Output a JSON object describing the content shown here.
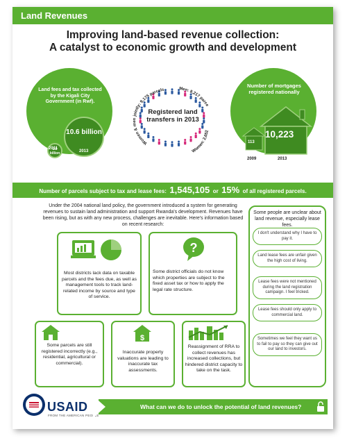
{
  "header": {
    "title": "Land Revenues"
  },
  "headline": {
    "line1": "Improving land-based revenue collection:",
    "line2": "A catalyst to economic growth and development"
  },
  "left_stat": {
    "label": "Land fees and tax collected by the Kigali City Government (in Rwf).",
    "small_value": "1.9 billion",
    "small_year": "2011",
    "big_value": "10.6 billion",
    "big_year": "2013"
  },
  "center_stat": {
    "label": "Registered land transfers in 2013",
    "men": "Men: 8,217 parcels",
    "jointly": "Women & men jointly: 9,175 parcels",
    "women": "Women: 2,652 parcels"
  },
  "right_stat": {
    "label": "Number of mortgages registered nationally",
    "small_value": "113",
    "small_year": "2009",
    "big_value": "10,223",
    "big_year": "2013"
  },
  "stripe": {
    "prefix": "Number of parcels subject to tax and lease fees:",
    "count": "1,545,105",
    "mid": "or",
    "percent": "15%",
    "suffix": "of all registered parcels."
  },
  "intro": "Under the 2004 national land policy, the government introduced a system for generating revenues to sustain land administration and support Rwanda's development. Revenues have been rising, but as with any new process, challenges are inevitable. Here's information based on recent research:",
  "cards": [
    {
      "text": "Most districts lack data on taxable parcels and the fees due, as well as management tools to track land-related income by source and type of service."
    },
    {
      "text": "Some district officials do not know which properties are subject to the fixed asset tax or how to apply the legal rate structure."
    },
    {
      "text": "Some parcels are still registered incorrectly (e.g., residential, agricultural or commercial)."
    },
    {
      "text": "Inaccurate property valuations are leading to inaccurate tax assessments."
    },
    {
      "text": "Reassignment of RRA to collect revenues has increased collections, but hindered district capacity to take on the task."
    }
  ],
  "sidebar": {
    "head": "Some people are unclear about land revenue, especially lease fees.",
    "quotes": [
      "I don't understand why I have to pay it.",
      "Land lease fees are unfair given the high cost of living.",
      "Lease fees were not mentioned during the land registration campaign. I feel tricked.",
      "Lease fees should only apply to commercial land.",
      "Sometimes we feel they want us to fail to pay so they can give out our land to investors."
    ]
  },
  "footer": {
    "org": "USAID",
    "tagline": "FROM THE AMERICAN PEOPLE",
    "cta": "What can we do to unlock the potential of land revenues?"
  },
  "colors": {
    "brand_green": "#5ab031",
    "dark_green": "#3f8b21",
    "men_blue": "#2c5aa0",
    "women_pink": "#d6287a",
    "usaid_navy": "#0b2f6b"
  },
  "icons": [
    "laptop-chart-icon",
    "pie-chart-icon",
    "question-bubble-icon",
    "house-icon",
    "dollar-house-icon",
    "building-chart-icon",
    "padlock-icon",
    "house-outline-icon",
    "usaid-seal-icon"
  ]
}
